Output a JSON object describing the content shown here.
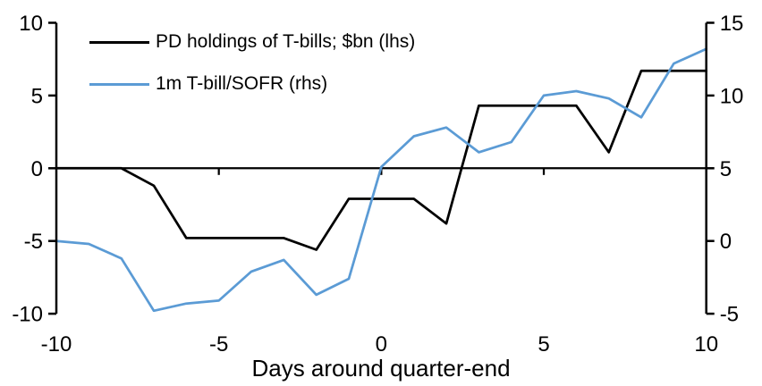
{
  "chart_data": {
    "type": "line",
    "xlabel": "Days around quarter-end",
    "x": [
      -10,
      -9,
      -8,
      -7,
      -6,
      -5,
      -4,
      -3,
      -2,
      -1,
      0,
      1,
      2,
      3,
      4,
      5,
      6,
      7,
      8,
      9,
      10
    ],
    "x_ticks": [
      -10,
      -5,
      0,
      5,
      10
    ],
    "left_axis": {
      "lim": [
        -10,
        10
      ],
      "ticks": [
        10,
        5,
        0,
        -5,
        -10
      ]
    },
    "right_axis": {
      "lim": [
        -5,
        15
      ],
      "ticks": [
        15,
        10,
        5,
        0,
        -5
      ]
    },
    "grid": false,
    "legend_position": "top-left",
    "series": [
      {
        "name": "PD holdings of T-bills; $bn (lhs)",
        "axis": "left",
        "color": "#000000",
        "values": [
          0,
          0,
          0,
          -1.2,
          -4.8,
          -4.8,
          -4.8,
          -4.8,
          -5.6,
          -2.1,
          -2.1,
          -2.1,
          -3.8,
          4.3,
          4.3,
          4.3,
          4.3,
          1.1,
          6.7,
          6.7,
          6.7
        ]
      },
      {
        "name": "1m T-bill/SOFR (rhs)",
        "axis": "right",
        "color": "#5B9BD5",
        "values": [
          0,
          -0.2,
          -1.2,
          -4.8,
          -4.3,
          -4.1,
          -2.1,
          -1.3,
          -3.7,
          -2.6,
          5.1,
          7.2,
          7.8,
          6.1,
          6.8,
          10,
          10.3,
          9.8,
          8.5,
          12.2,
          13.2
        ]
      }
    ]
  }
}
